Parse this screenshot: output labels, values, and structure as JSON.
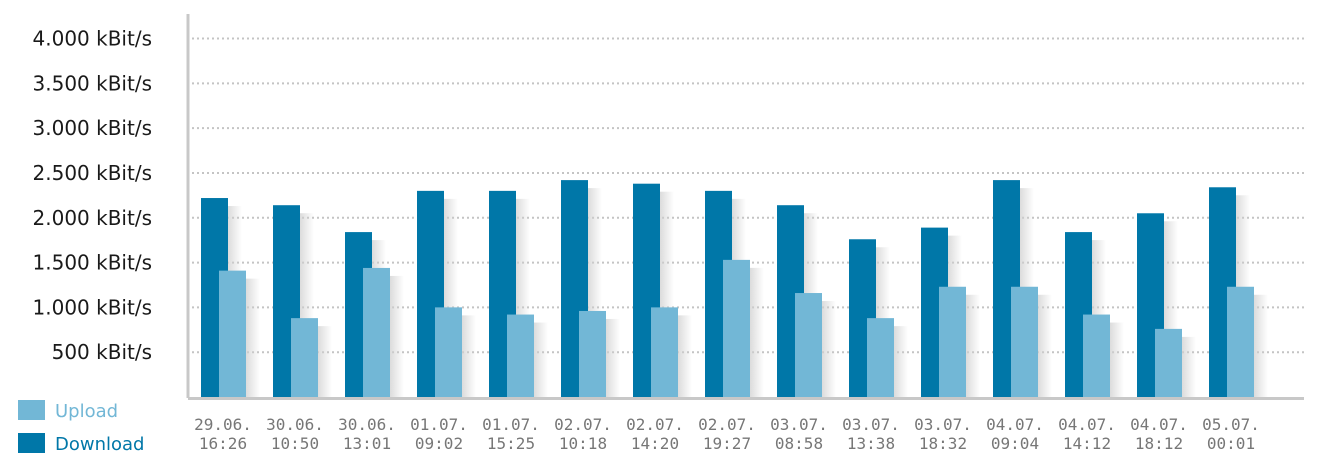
{
  "chart_data": {
    "type": "bar",
    "categories": [
      [
        "29.06.",
        "16:26"
      ],
      [
        "30.06.",
        "10:50"
      ],
      [
        "30.06.",
        "13:01"
      ],
      [
        "01.07.",
        "09:02"
      ],
      [
        "01.07.",
        "15:25"
      ],
      [
        "02.07.",
        "10:18"
      ],
      [
        "02.07.",
        "14:20"
      ],
      [
        "02.07.",
        "19:27"
      ],
      [
        "03.07.",
        "08:58"
      ],
      [
        "03.07.",
        "13:38"
      ],
      [
        "03.07.",
        "18:32"
      ],
      [
        "04.07.",
        "09:04"
      ],
      [
        "04.07.",
        "14:12"
      ],
      [
        "04.07.",
        "18:12"
      ],
      [
        "05.07.",
        "00:01"
      ]
    ],
    "series": [
      {
        "name": "Download",
        "color": "#0077a8",
        "values": [
          2220,
          2140,
          1840,
          2300,
          2300,
          2420,
          2380,
          2300,
          2140,
          1760,
          1890,
          2420,
          1840,
          2050,
          2340
        ]
      },
      {
        "name": "Upload",
        "color": "#72b7d6",
        "values": [
          1410,
          880,
          1440,
          1000,
          920,
          960,
          1000,
          1530,
          1160,
          880,
          1230,
          1230,
          920,
          760,
          1230
        ]
      }
    ],
    "yticks": [
      "500 kBit/s",
      "1.000 kBit/s",
      "1.500 kBit/s",
      "2.000 kBit/s",
      "2.500 kBit/s",
      "3.000 kBit/s",
      "3.500 kBit/s",
      "4.000 kBit/s"
    ],
    "ytick_values": [
      500,
      1000,
      1500,
      2000,
      2500,
      3000,
      3500,
      4000
    ],
    "ylim": [
      0,
      4000
    ],
    "grid": true,
    "legend": {
      "placement": "bottom-left",
      "items": [
        {
          "label": "Upload",
          "color": "#72b7d6"
        },
        {
          "label": "Download",
          "color": "#0077a8"
        }
      ]
    }
  }
}
